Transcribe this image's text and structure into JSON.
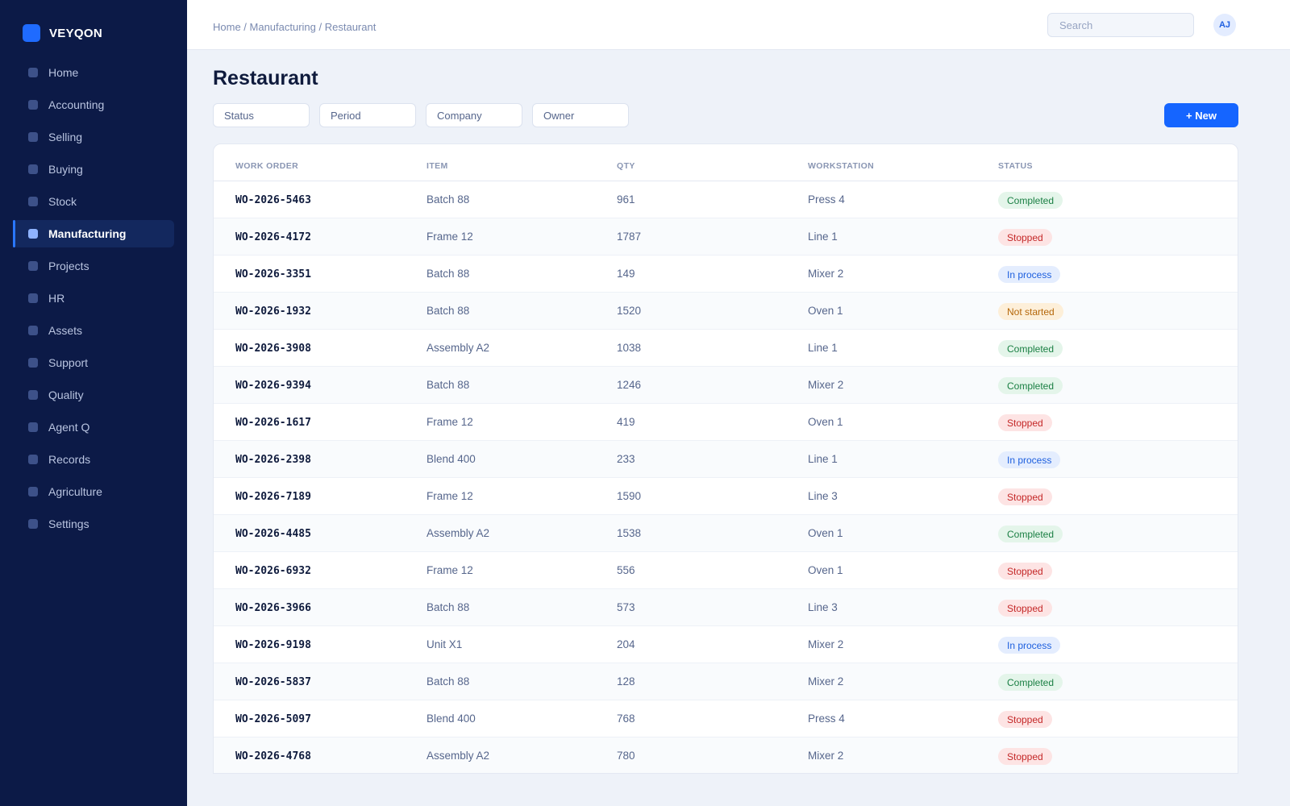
{
  "app": {
    "name": "VEYQON"
  },
  "sidebar": {
    "items": [
      {
        "label": "Home"
      },
      {
        "label": "Accounting"
      },
      {
        "label": "Selling"
      },
      {
        "label": "Buying"
      },
      {
        "label": "Stock"
      },
      {
        "label": "Manufacturing",
        "active": true
      },
      {
        "label": "Projects"
      },
      {
        "label": "HR"
      },
      {
        "label": "Assets"
      },
      {
        "label": "Support"
      },
      {
        "label": "Quality"
      },
      {
        "label": "Agent Q"
      },
      {
        "label": "Records"
      },
      {
        "label": "Agriculture"
      },
      {
        "label": "Settings"
      }
    ]
  },
  "topbar": {
    "breadcrumb": "Home / Manufacturing / Restaurant",
    "search_placeholder": "Search",
    "avatar_initials": "AJ"
  },
  "page": {
    "title": "Restaurant",
    "filters": [
      "Status",
      "Period",
      "Company",
      "Owner"
    ],
    "new_button": "+ New"
  },
  "table": {
    "columns": [
      "WORK ORDER",
      "ITEM",
      "QTY",
      "WORKSTATION",
      "STATUS"
    ],
    "rows": [
      {
        "wo": "WO-2026-5463",
        "item": "Batch 88",
        "qty": "961",
        "station": "Press 4",
        "status": "Completed"
      },
      {
        "wo": "WO-2026-4172",
        "item": "Frame 12",
        "qty": "1787",
        "station": "Line 1",
        "status": "Stopped"
      },
      {
        "wo": "WO-2026-3351",
        "item": "Batch 88",
        "qty": "149",
        "station": "Mixer 2",
        "status": "In process"
      },
      {
        "wo": "WO-2026-1932",
        "item": "Batch 88",
        "qty": "1520",
        "station": "Oven 1",
        "status": "Not started"
      },
      {
        "wo": "WO-2026-3908",
        "item": "Assembly A2",
        "qty": "1038",
        "station": "Line 1",
        "status": "Completed"
      },
      {
        "wo": "WO-2026-9394",
        "item": "Batch 88",
        "qty": "1246",
        "station": "Mixer 2",
        "status": "Completed"
      },
      {
        "wo": "WO-2026-1617",
        "item": "Frame 12",
        "qty": "419",
        "station": "Oven 1",
        "status": "Stopped"
      },
      {
        "wo": "WO-2026-2398",
        "item": "Blend 400",
        "qty": "233",
        "station": "Line 1",
        "status": "In process"
      },
      {
        "wo": "WO-2026-7189",
        "item": "Frame 12",
        "qty": "1590",
        "station": "Line 3",
        "status": "Stopped"
      },
      {
        "wo": "WO-2026-4485",
        "item": "Assembly A2",
        "qty": "1538",
        "station": "Oven 1",
        "status": "Completed"
      },
      {
        "wo": "WO-2026-6932",
        "item": "Frame 12",
        "qty": "556",
        "station": "Oven 1",
        "status": "Stopped"
      },
      {
        "wo": "WO-2026-3966",
        "item": "Batch 88",
        "qty": "573",
        "station": "Line 3",
        "status": "Stopped"
      },
      {
        "wo": "WO-2026-9198",
        "item": "Unit X1",
        "qty": "204",
        "station": "Mixer 2",
        "status": "In process"
      },
      {
        "wo": "WO-2026-5837",
        "item": "Batch 88",
        "qty": "128",
        "station": "Mixer 2",
        "status": "Completed"
      },
      {
        "wo": "WO-2026-5097",
        "item": "Blend 400",
        "qty": "768",
        "station": "Press 4",
        "status": "Stopped"
      },
      {
        "wo": "WO-2026-4768",
        "item": "Assembly A2",
        "qty": "780",
        "station": "Mixer 2",
        "status": "Stopped"
      }
    ]
  },
  "colors": {
    "sidebar_bg": "#0c1a47",
    "accent": "#1565ff",
    "completed": "#1a7f43",
    "stopped": "#c42727",
    "in_process": "#1d5fde",
    "not_started": "#b5670a"
  }
}
